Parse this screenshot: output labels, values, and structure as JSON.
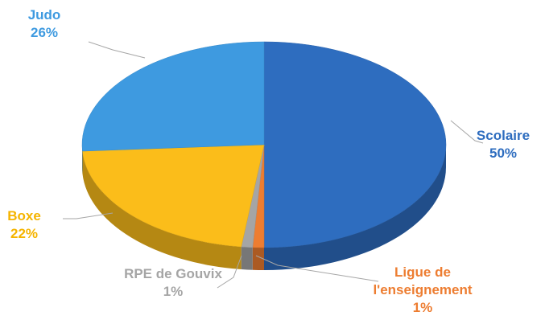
{
  "chart_data": {
    "type": "pie",
    "categories": [
      "Scolaire",
      "Ligue de l'enseignement",
      "RPE de Gouvix",
      "Boxe",
      "Judo"
    ],
    "values": [
      50,
      1,
      1,
      22,
      26
    ],
    "value_labels": [
      "50%",
      "1%",
      "1%",
      "22%",
      "26%"
    ],
    "colors": [
      "#2e6dbf",
      "#ed7d31",
      "#a5a5a5",
      "#fbbd1a",
      "#3e9ae0"
    ]
  }
}
